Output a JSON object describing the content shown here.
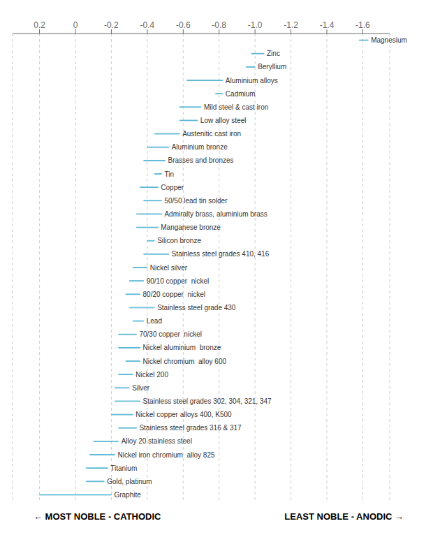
{
  "chart_data": {
    "type": "bar",
    "orientation": "horizontal",
    "tick_labels": "x",
    "grid": true,
    "categories": [
      "Magnesium",
      "Zinc",
      "Beryllium",
      "Aluminium alloys",
      "Cadmium",
      "Mild steel & cast iron",
      "Low alloy steel",
      "Austenitic cast iron",
      "Aluminium bronze",
      "Brasses and bronzes",
      "Tin",
      "Copper",
      "50/50 lead tin solder",
      "Admiralty brass, aluminium brass",
      "Manganese bronze",
      "Silicon bronze",
      "Stainless steel grades 410, 416",
      "Nickel silver",
      "90/10 copper  nickel",
      "80/20 copper  nickel",
      "Stainless steel grade 430",
      "Lead",
      "70/30 copper  nickel",
      "Nickel aluminium  bronze",
      "Nickel chromium  alloy 600",
      "Nickel 200",
      "Silver",
      "Stainless steel grades 302, 304, 321, 347",
      "Nickel copper alloys 400, K500",
      "Stainless steel grades 316 & 317",
      "Alloy 20 stainless steel",
      "Nickel iron chromium  alloy 825",
      "Titanium",
      "Gold, platinum",
      "Graphite"
    ],
    "values": [
      [
        -1.63,
        -1.58
      ],
      [
        -1.05,
        -0.98
      ],
      [
        -1.0,
        -0.95
      ],
      [
        -0.82,
        -0.62
      ],
      [
        -0.82,
        -0.78
      ],
      [
        -0.7,
        -0.58
      ],
      [
        -0.68,
        -0.58
      ],
      [
        -0.58,
        -0.44
      ],
      [
        -0.52,
        -0.4
      ],
      [
        -0.5,
        -0.38
      ],
      [
        -0.48,
        -0.44
      ],
      [
        -0.46,
        -0.36
      ],
      [
        -0.48,
        -0.38
      ],
      [
        -0.48,
        -0.34
      ],
      [
        -0.46,
        -0.34
      ],
      [
        -0.44,
        -0.4
      ],
      [
        -0.52,
        -0.38
      ],
      [
        -0.4,
        -0.32
      ],
      [
        -0.38,
        -0.3
      ],
      [
        -0.36,
        -0.28
      ],
      [
        -0.44,
        -0.3
      ],
      [
        -0.38,
        -0.32
      ],
      [
        -0.34,
        -0.24
      ],
      [
        -0.36,
        -0.24
      ],
      [
        -0.36,
        -0.28
      ],
      [
        -0.32,
        -0.24
      ],
      [
        -0.3,
        -0.22
      ],
      [
        -0.36,
        -0.22
      ],
      [
        -0.32,
        -0.2
      ],
      [
        -0.34,
        -0.24
      ],
      [
        -0.24,
        -0.1
      ],
      [
        -0.22,
        -0.08
      ],
      [
        -0.18,
        -0.06
      ],
      [
        -0.16,
        -0.06
      ],
      [
        -0.2,
        0.2
      ]
    ],
    "color": "#5bb8d4",
    "colors": [
      "#5bb8d4",
      "#5bb8d4",
      "#5bb8d4",
      "#5bb8d4",
      "#5bb8d4",
      "#5bb8d4",
      "#5bb8d4",
      "#5bb8d4",
      "#5bb8d4",
      "#5bb8d4",
      "#5bb8d4",
      "#5bb8d4",
      "#5bb8d4",
      "#5bb8d4",
      "#5bb8d4",
      "#5bb8d4",
      "#ffffff",
      "#5bb8d4",
      "#5bb8d4",
      "#5bb8d4",
      "#ffffff",
      "#5bb8d4",
      "#5bb8d4",
      "#5bb8d4",
      "#ffffff",
      "#5bb8d4",
      "#5bb8d4",
      "#ffffff",
      "#5bb8d4",
      "#5bb8d4",
      "#5bb8d4",
      "#5bb8d4",
      "#5bb8d4",
      "#5bb8d4",
      "#5bb8d4"
    ],
    "xlim": [
      0.35,
      -1.75
    ],
    "xticks": [
      0.2,
      0,
      -0.2,
      -0.4,
      -0.6,
      -0.8,
      {
        "value": -1.0,
        "label": "-1.0"
      },
      -1.2,
      -1.4,
      -1.6
    ],
    "annotations": [
      "← MOST NOBLE - CATHODIC",
      "LEAST NOBLE - ANODIC →"
    ]
  }
}
